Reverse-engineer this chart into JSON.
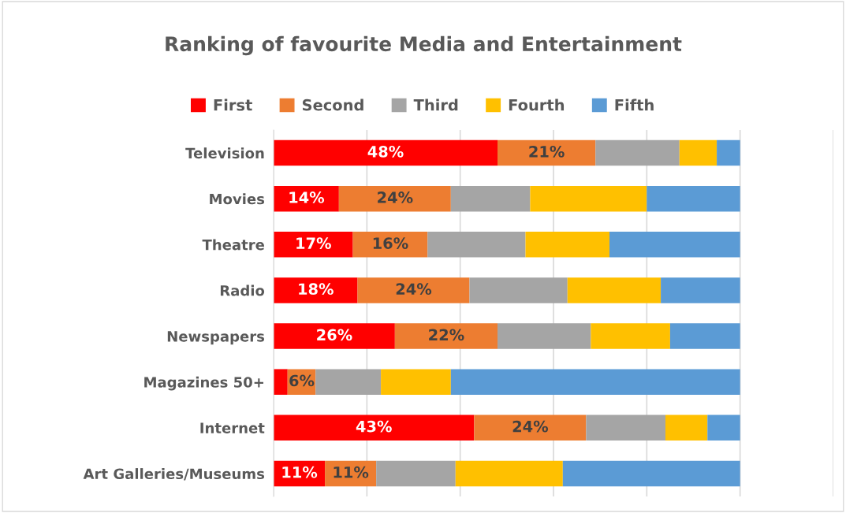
{
  "chart_data": {
    "type": "bar",
    "orientation": "horizontal",
    "stacked": true,
    "title": "Ranking of favourite Media and Entertainment",
    "categories": [
      "Television",
      "Movies",
      "Theatre",
      "Radio",
      "Newspapers",
      "Magazines 50+",
      "Internet",
      "Art Galleries/Museums"
    ],
    "series": [
      {
        "name": "First",
        "color": "#ff0000",
        "values": [
          48,
          14,
          17,
          18,
          26,
          3,
          43,
          11
        ],
        "value_labels": [
          "48%",
          "14%",
          "17%",
          "18%",
          "26%",
          null,
          "43%",
          "11%"
        ]
      },
      {
        "name": "Second",
        "color": "#ed7d31",
        "values": [
          21,
          24,
          16,
          24,
          22,
          6,
          24,
          11
        ],
        "value_labels": [
          "21%",
          "24%",
          "16%",
          "24%",
          "22%",
          "6%",
          "24%",
          "11%"
        ]
      },
      {
        "name": "Third",
        "color": "#a5a5a5",
        "values": [
          18,
          17,
          21,
          21,
          20,
          14,
          17,
          17
        ]
      },
      {
        "name": "Fourth",
        "color": "#ffc000",
        "values": [
          8,
          25,
          18,
          20,
          17,
          15,
          9,
          23
        ]
      },
      {
        "name": "Fifth",
        "color": "#5b9bd5",
        "values": [
          5,
          20,
          28,
          17,
          15,
          62,
          7,
          38
        ]
      }
    ],
    "xlim": [
      0,
      120
    ],
    "xticks": [
      {
        "value": 0,
        "label": null
      },
      {
        "value": 20,
        "label": null
      },
      {
        "value": 40,
        "label": null
      },
      {
        "value": 60,
        "label": null
      },
      {
        "value": 80,
        "label": null
      },
      {
        "value": 100,
        "label": null
      },
      {
        "value": 120,
        "label": null
      }
    ],
    "grid": "x",
    "legend": "top"
  }
}
